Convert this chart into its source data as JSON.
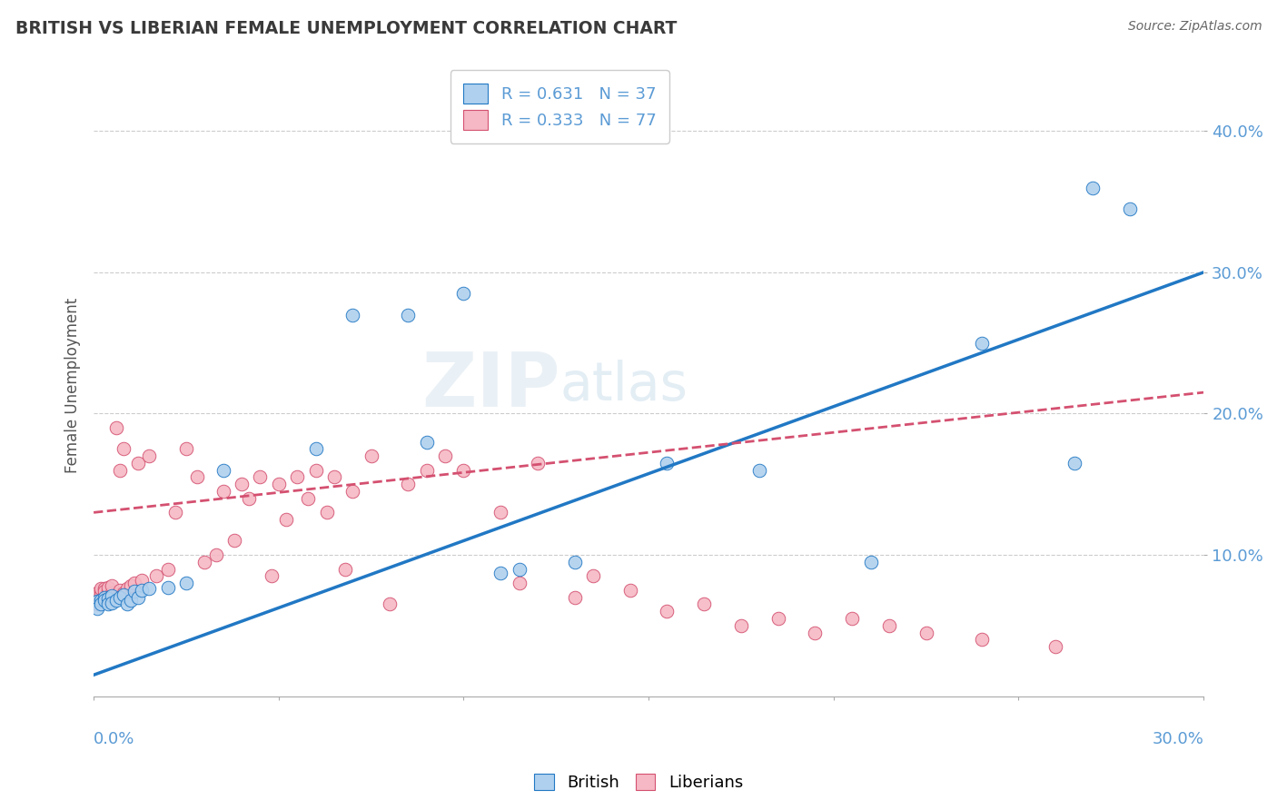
{
  "title": "BRITISH VS LIBERIAN FEMALE UNEMPLOYMENT CORRELATION CHART",
  "source": "Source: ZipAtlas.com",
  "ylabel": "Female Unemployment",
  "xlim": [
    0.0,
    0.3
  ],
  "ylim": [
    0.0,
    0.44
  ],
  "watermark": "ZIPatlas",
  "legend_british_r": "R = 0.631",
  "legend_british_n": "N = 37",
  "legend_liberian_r": "R = 0.333",
  "legend_liberian_n": "N = 77",
  "british_color": "#afd0ee",
  "liberian_color": "#f5b8c4",
  "british_line_color": "#2178c4",
  "liberian_line_color": "#d45070",
  "title_color": "#3a3a3a",
  "axis_color": "#5b9bd5",
  "grid_color": "#cccccc",
  "british_line": [
    0.0,
    0.015,
    0.3,
    0.3
  ],
  "liberian_line": [
    0.0,
    0.13,
    0.3,
    0.215
  ],
  "british_x": [
    0.001,
    0.001,
    0.002,
    0.002,
    0.003,
    0.003,
    0.004,
    0.004,
    0.005,
    0.005,
    0.006,
    0.007,
    0.008,
    0.009,
    0.01,
    0.011,
    0.012,
    0.013,
    0.015,
    0.02,
    0.025,
    0.035,
    0.06,
    0.07,
    0.085,
    0.09,
    0.1,
    0.11,
    0.115,
    0.13,
    0.155,
    0.18,
    0.21,
    0.24,
    0.265,
    0.27,
    0.28
  ],
  "british_y": [
    0.067,
    0.062,
    0.068,
    0.065,
    0.07,
    0.068,
    0.069,
    0.065,
    0.071,
    0.066,
    0.068,
    0.07,
    0.072,
    0.065,
    0.068,
    0.074,
    0.07,
    0.075,
    0.076,
    0.077,
    0.08,
    0.16,
    0.175,
    0.27,
    0.27,
    0.18,
    0.285,
    0.087,
    0.09,
    0.095,
    0.165,
    0.16,
    0.095,
    0.25,
    0.165,
    0.36,
    0.345
  ],
  "liberian_x": [
    0.001,
    0.001,
    0.001,
    0.001,
    0.001,
    0.002,
    0.002,
    0.002,
    0.002,
    0.002,
    0.003,
    0.003,
    0.003,
    0.003,
    0.003,
    0.004,
    0.004,
    0.004,
    0.005,
    0.005,
    0.005,
    0.006,
    0.006,
    0.007,
    0.007,
    0.008,
    0.008,
    0.009,
    0.01,
    0.011,
    0.012,
    0.013,
    0.015,
    0.017,
    0.02,
    0.022,
    0.025,
    0.028,
    0.03,
    0.033,
    0.035,
    0.038,
    0.04,
    0.042,
    0.045,
    0.048,
    0.05,
    0.052,
    0.055,
    0.058,
    0.06,
    0.063,
    0.065,
    0.068,
    0.07,
    0.075,
    0.08,
    0.085,
    0.09,
    0.095,
    0.1,
    0.11,
    0.115,
    0.12,
    0.13,
    0.135,
    0.145,
    0.155,
    0.165,
    0.175,
    0.185,
    0.195,
    0.205,
    0.215,
    0.225,
    0.24,
    0.26
  ],
  "liberian_y": [
    0.065,
    0.068,
    0.072,
    0.07,
    0.073,
    0.066,
    0.075,
    0.068,
    0.072,
    0.076,
    0.068,
    0.072,
    0.076,
    0.071,
    0.074,
    0.069,
    0.074,
    0.077,
    0.07,
    0.073,
    0.078,
    0.072,
    0.19,
    0.075,
    0.16,
    0.073,
    0.175,
    0.076,
    0.078,
    0.08,
    0.165,
    0.082,
    0.17,
    0.085,
    0.09,
    0.13,
    0.175,
    0.155,
    0.095,
    0.1,
    0.145,
    0.11,
    0.15,
    0.14,
    0.155,
    0.085,
    0.15,
    0.125,
    0.155,
    0.14,
    0.16,
    0.13,
    0.155,
    0.09,
    0.145,
    0.17,
    0.065,
    0.15,
    0.16,
    0.17,
    0.16,
    0.13,
    0.08,
    0.165,
    0.07,
    0.085,
    0.075,
    0.06,
    0.065,
    0.05,
    0.055,
    0.045,
    0.055,
    0.05,
    0.045,
    0.04,
    0.035
  ]
}
